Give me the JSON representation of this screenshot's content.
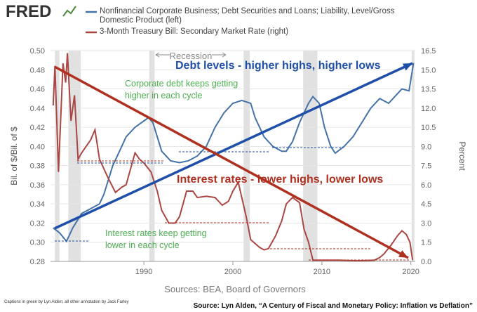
{
  "chart_data": {
    "type": "line",
    "logo": "FRED",
    "xlim": [
      1979.5,
      2020.5
    ],
    "xticks": [
      1990,
      2000,
      2010,
      2020
    ],
    "ylim": [
      0.28,
      0.5
    ],
    "yticks": [
      0.28,
      {
        "value": 0.3,
        "label": "0.30"
      },
      0.32,
      0.34,
      0.36,
      0.38,
      {
        "value": 0.4,
        "label": "0.40"
      },
      0.42,
      0.44,
      0.46,
      0.48,
      {
        "value": 0.5,
        "label": "0.50"
      }
    ],
    "y2lim": [
      0,
      16.5
    ],
    "y2ticks": [
      {
        "value": 0,
        "label": "0.0"
      },
      1.5,
      {
        "value": 3,
        "label": "3.0"
      },
      4.5,
      {
        "value": 6,
        "label": "6.0"
      },
      7.5,
      {
        "value": 9,
        "label": "9.0"
      },
      10.5,
      {
        "value": 12,
        "label": "12.0"
      },
      13.5,
      {
        "value": 15,
        "label": "15.0"
      },
      16.5
    ],
    "ylabel": "Bil. of $/Bil. of $",
    "y2label": "Percent",
    "grid": true,
    "recession_label": "Recession",
    "recessions": [
      [
        1980.0,
        1980.5
      ],
      [
        1981.5,
        1982.9
      ],
      [
        1990.6,
        1991.2
      ],
      [
        2001.2,
        2001.9
      ],
      [
        2007.9,
        2009.5
      ],
      [
        2020.1,
        2020.4
      ]
    ],
    "series": [
      {
        "name": "Nonfinancial Corporate Business; Debt Securities and Loans; Liability, Level/Gross Domestic Product (left)",
        "color": "#4572a7",
        "axis": "y",
        "x": [
          1979.8,
          1980.5,
          1981.3,
          1982,
          1983,
          1984,
          1985,
          1985.5,
          1986.5,
          1987.5,
          1988,
          1989,
          1990.5,
          1991,
          1991.5,
          1992,
          1993,
          1994,
          1995,
          1996,
          1997,
          1998,
          1999,
          2000,
          2001,
          2002,
          2002.5,
          2003.5,
          2004.5,
          2005.5,
          2006,
          2006.7,
          2007.5,
          2008.5,
          2009,
          2009.7,
          2010.3,
          2011,
          2011.5,
          2012.5,
          2013.5,
          2014.5,
          2015.5,
          2016.5,
          2017.5,
          2018.5,
          2019,
          2019.8,
          2020.3
        ],
        "values": [
          0.315,
          0.31,
          0.301,
          0.315,
          0.33,
          0.335,
          0.34,
          0.35,
          0.38,
          0.4,
          0.41,
          0.42,
          0.43,
          0.425,
          0.41,
          0.395,
          0.385,
          0.383,
          0.385,
          0.39,
          0.4,
          0.42,
          0.435,
          0.445,
          0.448,
          0.445,
          0.43,
          0.41,
          0.4,
          0.395,
          0.395,
          0.405,
          0.425,
          0.445,
          0.452,
          0.445,
          0.42,
          0.4,
          0.393,
          0.4,
          0.41,
          0.425,
          0.44,
          0.45,
          0.445,
          0.455,
          0.46,
          0.458,
          0.487
        ]
      },
      {
        "name": "3-Month Treasury Bill: Secondary Market Rate (right)",
        "color": "#aa4643",
        "axis": "y2",
        "x": [
          1979.8,
          1980.0,
          1980.4,
          1980.9,
          1981.2,
          1981.4,
          1981.8,
          1982.2,
          1982.6,
          1983,
          1983.5,
          1984,
          1984.5,
          1985,
          1986,
          1986.8,
          1987.5,
          1988,
          1989,
          1989.5,
          1990,
          1990.8,
          1991.5,
          1992,
          1992.8,
          1993.5,
          1994,
          1994.8,
          1995.5,
          1996,
          1997,
          1998,
          1998.8,
          1999.5,
          2000,
          2000.6,
          2001,
          2001.5,
          2002,
          2003,
          2003.5,
          2004,
          2004.8,
          2005.5,
          2006,
          2006.7,
          2007.5,
          2008,
          2008.5,
          2009,
          2010,
          2012,
          2014,
          2015.9,
          2016.5,
          2017,
          2017.8,
          2018.5,
          2019,
          2019.5,
          2019.9,
          2020.2
        ],
        "values": [
          12.2,
          15.3,
          7.0,
          15.5,
          14.0,
          16.3,
          11.0,
          13.0,
          8.0,
          8.5,
          9.0,
          9.5,
          10.3,
          8.0,
          6.5,
          5.4,
          5.8,
          6.0,
          8.5,
          8.0,
          7.7,
          7.0,
          5.5,
          4.0,
          3.0,
          3.0,
          3.5,
          5.5,
          5.5,
          5.0,
          5.1,
          5.0,
          4.4,
          4.7,
          5.5,
          6.2,
          5.0,
          3.5,
          1.7,
          1.1,
          0.9,
          1.0,
          2.0,
          3.2,
          4.5,
          5.0,
          4.6,
          2.5,
          1.5,
          0.1,
          0.1,
          0.1,
          0.05,
          0.1,
          0.3,
          0.6,
          1.3,
          2.0,
          2.4,
          2.1,
          1.5,
          0.1
        ]
      }
    ],
    "annotations": [
      "Debt levels - higher highs, higher lows",
      "Corporate debt keeps getting higher in each cycle",
      "Interest rates - lower highs, lower lows",
      "Interest rates keep getting lower in each cycle"
    ],
    "sources": "Sources: BEA, Board of Governors",
    "credit": "Captions in green by Lyn Alden; all other annotation by Jack Farley",
    "footer_source": "Source: Lyn Alden, “A Century of Fiscal and Monetary Policy: Inflation vs Deflation”"
  }
}
